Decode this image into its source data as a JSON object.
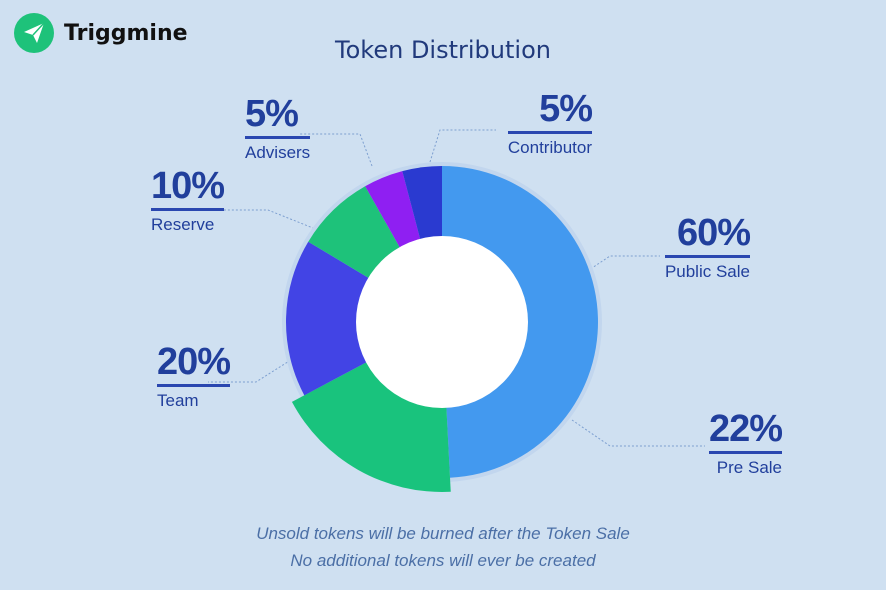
{
  "brand": {
    "name": "Triggmine",
    "icon": "paper-plane-icon",
    "color": "#1ec27a"
  },
  "chart_data": {
    "type": "pie",
    "title": "Token Distribution",
    "slices": [
      {
        "label": "Public Sale",
        "value": 60,
        "display": "60%",
        "color": "#4399ef"
      },
      {
        "label": "Pre Sale",
        "value": 22,
        "display": "22%",
        "color": "#19c37d"
      },
      {
        "label": "Team",
        "value": 20,
        "display": "20%",
        "color": "#4244e5"
      },
      {
        "label": "Reserve",
        "value": 10,
        "display": "10%",
        "color": "#1ec27a"
      },
      {
        "label": "Advisers",
        "value": 5,
        "display": "5%",
        "color": "#8f1ff2"
      },
      {
        "label": "Contributor",
        "value": 5,
        "display": "5%",
        "color": "#2a3ad0"
      }
    ]
  },
  "footnote": {
    "line1": "Unsold tokens will be burned after the Token Sale",
    "line2": "No additional tokens will ever be created"
  }
}
